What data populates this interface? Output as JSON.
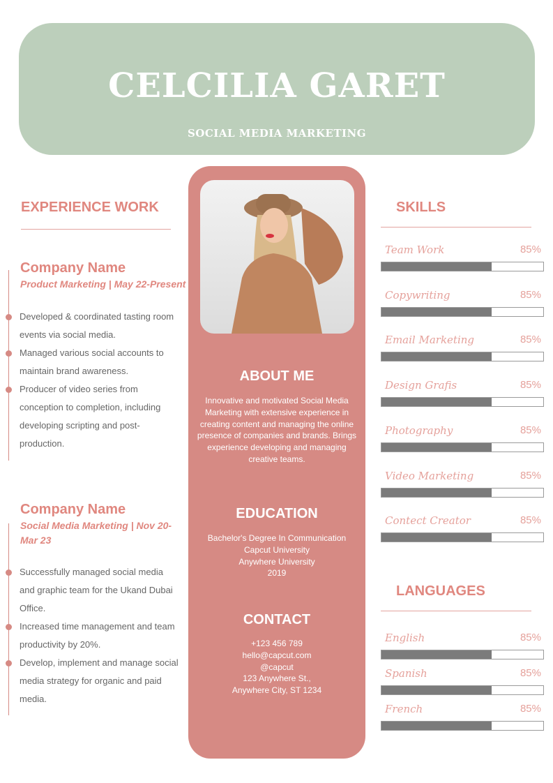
{
  "header": {
    "name": "CELCILIA GARET",
    "title": "SOCIAL MEDIA MARKETING"
  },
  "experience": {
    "heading": "EXPERIENCE WORK",
    "jobs": [
      {
        "company": "Company Name",
        "role": "Product Marketing | May 22-Present",
        "bullets": [
          "Developed & coordinated tasting room events via social media.",
          "Managed various social accounts to maintain brand awareness.",
          "Producer of video series from conception to completion, including developing scripting and post-production."
        ]
      },
      {
        "company": "Company Name",
        "role": "Social Media Marketing | Nov 20-Mar 23",
        "bullets": [
          "Successfully managed social media and graphic team for the Ukand Dubai Office.",
          "Increased time management and team productivity by 20%.",
          "Develop, implement and manage social media strategy for organic and paid media."
        ]
      }
    ]
  },
  "about": {
    "heading": "ABOUT ME",
    "text": "Innovative and motivated Social Media Marketing with extensive experience in creating content and managing the online presence of companies and brands. Brings experience developing and managing creative teams."
  },
  "education": {
    "heading": "EDUCATION",
    "lines": [
      "Bachelor's Degree In Communication",
      "Capcut University",
      "Anywhere University",
      "2019"
    ]
  },
  "contact": {
    "heading": "CONTACT",
    "lines": [
      "+123  456 789",
      "hello@capcut.com",
      "@capcut",
      "123 Anywhere St.,",
      "Anywhere City, ST 1234"
    ]
  },
  "skills": {
    "heading": "SKILLS",
    "items": [
      {
        "label": "Team Work",
        "percent": "85%",
        "fill": 0.68
      },
      {
        "label": "Copywriting",
        "percent": "85%",
        "fill": 0.68
      },
      {
        "label": "Email Marketing",
        "percent": "85%",
        "fill": 0.68
      },
      {
        "label": "Design Grafis",
        "percent": "85%",
        "fill": 0.68
      },
      {
        "label": "Photography",
        "percent": "85%",
        "fill": 0.68
      },
      {
        "label": "Video Marketing",
        "percent": "85%",
        "fill": 0.68
      },
      {
        "label": "Contect Creator",
        "percent": "85%",
        "fill": 0.68
      }
    ]
  },
  "languages": {
    "heading": "LANGUAGES",
    "items": [
      {
        "label": "English",
        "percent": "85%",
        "fill": 0.68
      },
      {
        "label": "Spanish",
        "percent": "85%",
        "fill": 0.68
      },
      {
        "label": "French",
        "percent": "85%",
        "fill": 0.68
      }
    ]
  },
  "colors": {
    "header": "#bccfbb",
    "accent": "#d68a84",
    "bar": "#7b7b7b"
  }
}
